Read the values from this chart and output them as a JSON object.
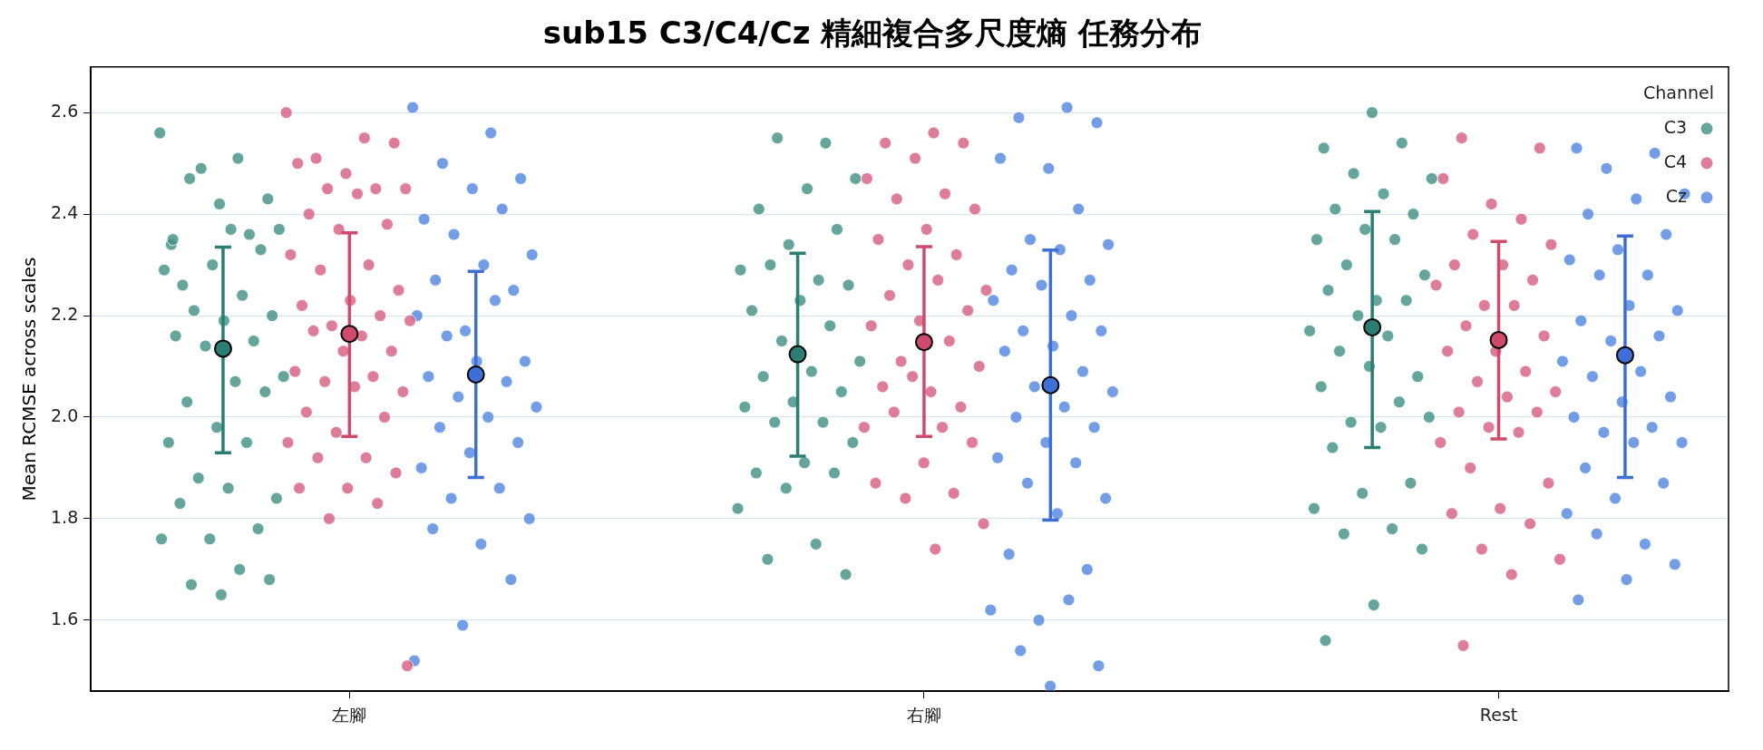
{
  "chart_data": {
    "type": "scatter",
    "title": "sub15 C3/C4/Cz 精細複合多尺度熵 任務分布",
    "ylabel": "Mean RCMSE across scales",
    "legend_title": "Channel",
    "legend": "top right",
    "grid": "y",
    "marker": "circle",
    "categories": [
      "左腳",
      "右腳",
      "Rest"
    ],
    "ylim": [
      1.46,
      2.69
    ],
    "yticks": [
      1.6,
      1.8,
      {
        "value": 2,
        "label": "2.0"
      },
      2.2,
      2.4,
      2.6
    ],
    "series": [
      {
        "name": "C3",
        "color": "#3f8f82",
        "x": [
          "左腳",
          "左腳",
          "左腳",
          "左腳",
          "左腳",
          "左腳",
          "左腳",
          "左腳",
          "左腳",
          "左腳",
          "左腳",
          "左腳",
          "左腳",
          "左腳",
          "左腳",
          "左腳",
          "左腳",
          "左腳",
          "左腳",
          "左腳",
          "左腳",
          "左腳",
          "左腳",
          "左腳",
          "左腳",
          "左腳",
          "左腳",
          "左腳",
          "左腳",
          "左腳",
          "左腳",
          "左腳",
          "左腳",
          "左腳",
          "左腳",
          "左腳",
          "左腳",
          "左腳",
          "左腳",
          "左腳",
          "右腳",
          "右腳",
          "右腳",
          "右腳",
          "右腳",
          "右腳",
          "右腳",
          "右腳",
          "右腳",
          "右腳",
          "右腳",
          "右腳",
          "右腳",
          "右腳",
          "右腳",
          "右腳",
          "右腳",
          "右腳",
          "右腳",
          "右腳",
          "右腳",
          "右腳",
          "右腳",
          "右腳",
          "右腳",
          "右腳",
          "右腳",
          "右腳",
          "右腳",
          "右腳",
          "右腳",
          "右腳",
          "Rest",
          "Rest",
          "Rest",
          "Rest",
          "Rest",
          "Rest",
          "Rest",
          "Rest",
          "Rest",
          "Rest",
          "Rest",
          "Rest",
          "Rest",
          "Rest",
          "Rest",
          "Rest",
          "Rest",
          "Rest",
          "Rest",
          "Rest",
          "Rest",
          "Rest",
          "Rest",
          "Rest",
          "Rest",
          "Rest",
          "Rest",
          "Rest",
          "Rest",
          "Rest",
          "Rest",
          "Rest",
          "Rest",
          "Rest",
          "Rest",
          "Rest"
        ],
        "values": [
          2.56,
          2.51,
          2.47,
          2.43,
          2.42,
          2.34,
          2.36,
          2.49,
          2.37,
          2.37,
          2.26,
          2.33,
          2.3,
          2.29,
          2.24,
          2.21,
          2.2,
          2.19,
          2.16,
          2.15,
          2.14,
          2.08,
          2.07,
          2.03,
          2.05,
          1.98,
          1.95,
          1.95,
          1.88,
          1.84,
          1.86,
          1.83,
          1.78,
          1.76,
          1.76,
          1.7,
          1.67,
          1.68,
          1.65,
          2.35,
          2.54,
          2.55,
          2.47,
          2.45,
          2.41,
          2.37,
          2.34,
          2.29,
          2.27,
          2.3,
          2.26,
          2.23,
          2.21,
          2.18,
          2.15,
          2.11,
          2.09,
          2.08,
          2.05,
          2.03,
          2.02,
          1.99,
          1.99,
          1.95,
          1.91,
          1.89,
          1.89,
          1.86,
          1.82,
          1.75,
          1.72,
          1.69,
          2.6,
          2.53,
          2.54,
          2.48,
          2.47,
          2.44,
          2.41,
          2.4,
          2.37,
          2.35,
          2.35,
          2.3,
          2.28,
          2.23,
          2.25,
          2.23,
          2.2,
          2.17,
          2.16,
          2.13,
          2.08,
          2.1,
          2.06,
          2.03,
          1.99,
          2,
          1.98,
          1.94,
          1.87,
          1.85,
          1.82,
          1.78,
          1.77,
          1.74,
          1.63,
          1.56
        ]
      },
      {
        "name": "C4",
        "color": "#d65d80",
        "x": [
          "左腳",
          "左腳",
          "左腳",
          "左腳",
          "左腳",
          "左腳",
          "左腳",
          "左腳",
          "左腳",
          "左腳",
          "左腳",
          "左腳",
          "左腳",
          "左腳",
          "左腳",
          "左腳",
          "左腳",
          "左腳",
          "左腳",
          "左腳",
          "左腳",
          "左腳",
          "左腳",
          "左腳",
          "左腳",
          "左腳",
          "左腳",
          "左腳",
          "左腳",
          "左腳",
          "左腳",
          "左腳",
          "左腳",
          "左腳",
          "左腳",
          "左腳",
          "左腳",
          "左腳",
          "左腳",
          "左腳",
          "左腳",
          "左腳",
          "左腳",
          "右腳",
          "右腳",
          "右腳",
          "右腳",
          "右腳",
          "右腳",
          "右腳",
          "右腳",
          "右腳",
          "右腳",
          "右腳",
          "右腳",
          "右腳",
          "右腳",
          "右腳",
          "右腳",
          "右腳",
          "右腳",
          "右腳",
          "右腳",
          "右腳",
          "右腳",
          "右腳",
          "右腳",
          "右腳",
          "右腳",
          "右腳",
          "右腳",
          "右腳",
          "右腳",
          "右腳",
          "右腳",
          "右腳",
          "右腳",
          "右腳",
          "Rest",
          "Rest",
          "Rest",
          "Rest",
          "Rest",
          "Rest",
          "Rest",
          "Rest",
          "Rest",
          "Rest",
          "Rest",
          "Rest",
          "Rest",
          "Rest",
          "Rest",
          "Rest",
          "Rest",
          "Rest",
          "Rest",
          "Rest",
          "Rest",
          "Rest",
          "Rest",
          "Rest",
          "Rest",
          "Rest",
          "Rest",
          "Rest",
          "Rest",
          "Rest",
          "Rest",
          "Rest",
          "Rest",
          "Rest",
          "Rest"
        ],
        "values": [
          2.6,
          2.55,
          2.51,
          2.54,
          2.48,
          2.5,
          2.45,
          2.45,
          2.45,
          2.44,
          2.4,
          2.38,
          2.37,
          2.32,
          2.3,
          2.29,
          2.25,
          2.23,
          2.22,
          2.2,
          2.18,
          2.19,
          2.16,
          2.17,
          2.13,
          2.13,
          2.09,
          2.08,
          2.07,
          2.05,
          2.06,
          2.01,
          2,
          1.97,
          1.95,
          1.92,
          1.92,
          1.89,
          1.86,
          1.86,
          1.83,
          1.8,
          1.51,
          2.56,
          2.54,
          2.54,
          2.51,
          2.47,
          2.44,
          2.43,
          2.41,
          2.37,
          2.35,
          2.32,
          2.3,
          2.25,
          2.27,
          2.24,
          2.21,
          2.19,
          2.18,
          2.15,
          2.11,
          2.1,
          2.05,
          2.06,
          2.02,
          2.08,
          1.98,
          1.98,
          2.01,
          1.95,
          1.91,
          1.87,
          1.85,
          1.84,
          1.79,
          1.74,
          2.55,
          2.53,
          2.42,
          2.47,
          2.39,
          2.36,
          2.34,
          2.3,
          2.3,
          2.27,
          2.22,
          2.26,
          2.22,
          2.18,
          2.16,
          2.13,
          2.13,
          2.09,
          2.07,
          2.05,
          2.04,
          2.01,
          2.01,
          1.98,
          1.95,
          1.97,
          1.9,
          1.87,
          1.82,
          1.81,
          1.79,
          1.74,
          1.72,
          1.69,
          1.55
        ]
      },
      {
        "name": "Cz",
        "color": "#5086e0",
        "x": [
          "左腳",
          "左腳",
          "左腳",
          "左腳",
          "左腳",
          "左腳",
          "左腳",
          "左腳",
          "左腳",
          "左腳",
          "左腳",
          "左腳",
          "左腳",
          "左腳",
          "左腳",
          "左腳",
          "左腳",
          "左腳",
          "左腳",
          "左腳",
          "左腳",
          "左腳",
          "左腳",
          "左腳",
          "左腳",
          "左腳",
          "左腳",
          "左腳",
          "左腳",
          "左腳",
          "左腳",
          "左腳",
          "左腳",
          "左腳",
          "左腳",
          "右腳",
          "右腳",
          "右腳",
          "右腳",
          "右腳",
          "右腳",
          "右腳",
          "右腳",
          "右腳",
          "右腳",
          "右腳",
          "右腳",
          "右腳",
          "右腳",
          "右腳",
          "右腳",
          "右腳",
          "右腳",
          "右腳",
          "右腳",
          "右腳",
          "右腳",
          "右腳",
          "右腳",
          "右腳",
          "右腳",
          "右腳",
          "右腳",
          "右腳",
          "右腳",
          "右腳",
          "右腳",
          "右腳",
          "右腳",
          "右腳",
          "右腳",
          "右腳",
          "右腳",
          "Rest",
          "Rest",
          "Rest",
          "Rest",
          "Rest",
          "Rest",
          "Rest",
          "Rest",
          "Rest",
          "Rest",
          "Rest",
          "Rest",
          "Rest",
          "Rest",
          "Rest",
          "Rest",
          "Rest",
          "Rest",
          "Rest",
          "Rest",
          "Rest",
          "Rest",
          "Rest",
          "Rest",
          "Rest",
          "Rest",
          "Rest",
          "Rest",
          "Rest",
          "Rest",
          "Rest",
          "Rest",
          "Rest",
          "Rest",
          "Rest"
        ],
        "values": [
          2.61,
          2.56,
          2.5,
          2.47,
          2.45,
          2.39,
          2.41,
          2.36,
          2.32,
          2.3,
          2.27,
          2.25,
          2.17,
          2.2,
          2.23,
          2.16,
          2.11,
          2.11,
          2.08,
          2.07,
          2.04,
          2.02,
          2,
          1.98,
          1.95,
          1.93,
          1.9,
          1.86,
          1.84,
          1.8,
          1.75,
          1.78,
          1.68,
          1.59,
          1.52,
          2.61,
          2.59,
          2.58,
          2.49,
          2.51,
          2.41,
          2.35,
          2.34,
          2.33,
          2.29,
          2.27,
          2.26,
          2.23,
          2.2,
          2.17,
          2.17,
          2.14,
          2.13,
          2.09,
          2.06,
          2.05,
          2.02,
          2,
          1.98,
          1.95,
          1.92,
          1.91,
          1.87,
          1.84,
          1.81,
          1.73,
          1.7,
          1.6,
          1.62,
          1.64,
          1.54,
          1.51,
          1.47,
          2.53,
          2.52,
          2.49,
          2.44,
          2.43,
          2.4,
          2.36,
          2.33,
          2.31,
          2.28,
          2.28,
          2.21,
          2.22,
          2.19,
          2.16,
          2.15,
          2.11,
          2.09,
          2.08,
          2.04,
          2.03,
          2,
          1.98,
          1.97,
          1.95,
          1.95,
          1.9,
          1.87,
          1.84,
          1.81,
          1.75,
          1.77,
          1.71,
          1.68,
          1.64
        ]
      },
      {
        "color": "#2a7f72",
        "marker": "circle",
        "x": [
          "左腳",
          "右腳",
          "Rest"
        ],
        "values": [
          2.135,
          2.124,
          2.177
        ],
        "errors": [
          [
            1.93,
            2.335
          ],
          [
            1.923,
            2.323
          ],
          [
            1.94,
            2.405
          ]
        ]
      },
      {
        "color": "#d04a6e",
        "marker": "circle",
        "x": [
          "左腳",
          "右腳",
          "Rest"
        ],
        "values": [
          2.164,
          2.148,
          2.152
        ],
        "errors": [
          [
            1.962,
            2.363
          ],
          [
            1.962,
            2.336
          ],
          [
            1.957,
            2.346
          ]
        ]
      },
      {
        "color": "#3d6fd6",
        "marker": "circle",
        "x": [
          "左腳",
          "右腳",
          "Rest"
        ],
        "values": [
          2.084,
          2.063,
          2.122
        ],
        "errors": [
          [
            1.881,
            2.287
          ],
          [
            1.797,
            2.329
          ],
          [
            1.881,
            2.357
          ]
        ]
      }
    ]
  }
}
